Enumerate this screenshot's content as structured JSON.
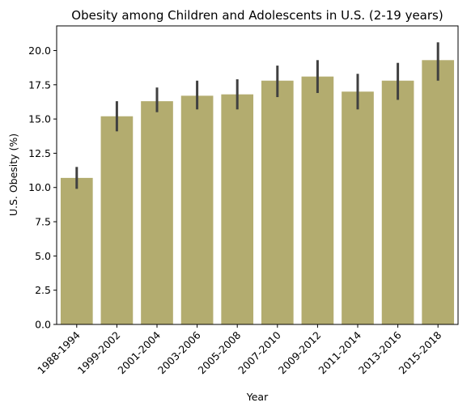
{
  "chart_data": {
    "type": "bar",
    "title": "Obesity among Children and Adolescents in U.S. (2-19 years)",
    "xlabel": "Year",
    "ylabel": "U.S. Obesity (%)",
    "ylim": [
      0,
      21.8
    ],
    "yticks": [
      "0.0",
      "2.5",
      "5.0",
      "7.5",
      "10.0",
      "12.5",
      "15.0",
      "17.5",
      "20.0"
    ],
    "categories": [
      "1988-1994",
      "1999-2002",
      "2001-2004",
      "2003-2006",
      "2005-2008",
      "2007-2010",
      "2009-2012",
      "2011-2014",
      "2013-2016",
      "2015-2018"
    ],
    "values": [
      10.7,
      15.2,
      16.3,
      16.7,
      16.8,
      17.8,
      18.1,
      17.0,
      17.8,
      19.3
    ],
    "error_low": [
      9.9,
      14.1,
      15.5,
      15.7,
      15.7,
      16.6,
      16.9,
      15.7,
      16.4,
      17.8
    ],
    "error_high": [
      11.5,
      16.3,
      17.3,
      17.8,
      17.9,
      18.9,
      19.3,
      18.3,
      19.1,
      20.6
    ],
    "bar_color": "#b3ac6f",
    "error_color": "#404040",
    "grid": false,
    "legend": "none"
  }
}
